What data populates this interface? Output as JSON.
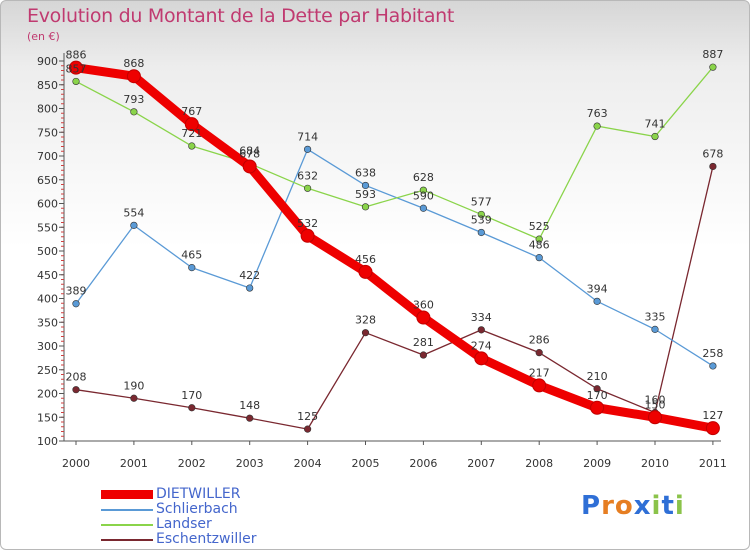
{
  "title": "Evolution du Montant de la Dette par Habitant",
  "unit": "(en €)",
  "logo": [
    "P",
    "r",
    "o",
    "x",
    "i",
    "t",
    "i"
  ],
  "chart_data": {
    "type": "line",
    "x": [
      "2000",
      "2001",
      "2002",
      "2003",
      "2004",
      "2005",
      "2006",
      "2007",
      "2008",
      "2009",
      "2010",
      "2011"
    ],
    "ylim": [
      100,
      900
    ],
    "yticks": [
      100,
      150,
      200,
      250,
      300,
      350,
      400,
      450,
      500,
      550,
      600,
      650,
      700,
      750,
      800,
      850,
      900
    ],
    "grid": false,
    "legend_position": "bottom-left",
    "series": [
      {
        "name": "DIETWILLER",
        "color": "#ee0000",
        "values": [
          886,
          868,
          767,
          678,
          532,
          456,
          360,
          274,
          217,
          170,
          150,
          127
        ]
      },
      {
        "name": "Schlierbach",
        "color": "#5a9ad6",
        "values": [
          389,
          554,
          465,
          422,
          714,
          638,
          590,
          539,
          486,
          394,
          335,
          258
        ]
      },
      {
        "name": "Landser",
        "color": "#8ad44a",
        "values": [
          857,
          793,
          721,
          684,
          632,
          593,
          628,
          577,
          525,
          763,
          741,
          887
        ]
      },
      {
        "name": "Eschentzwiller",
        "color": "#7a2830",
        "values": [
          208,
          190,
          170,
          148,
          125,
          328,
          281,
          334,
          286,
          210,
          160,
          678
        ]
      }
    ]
  }
}
